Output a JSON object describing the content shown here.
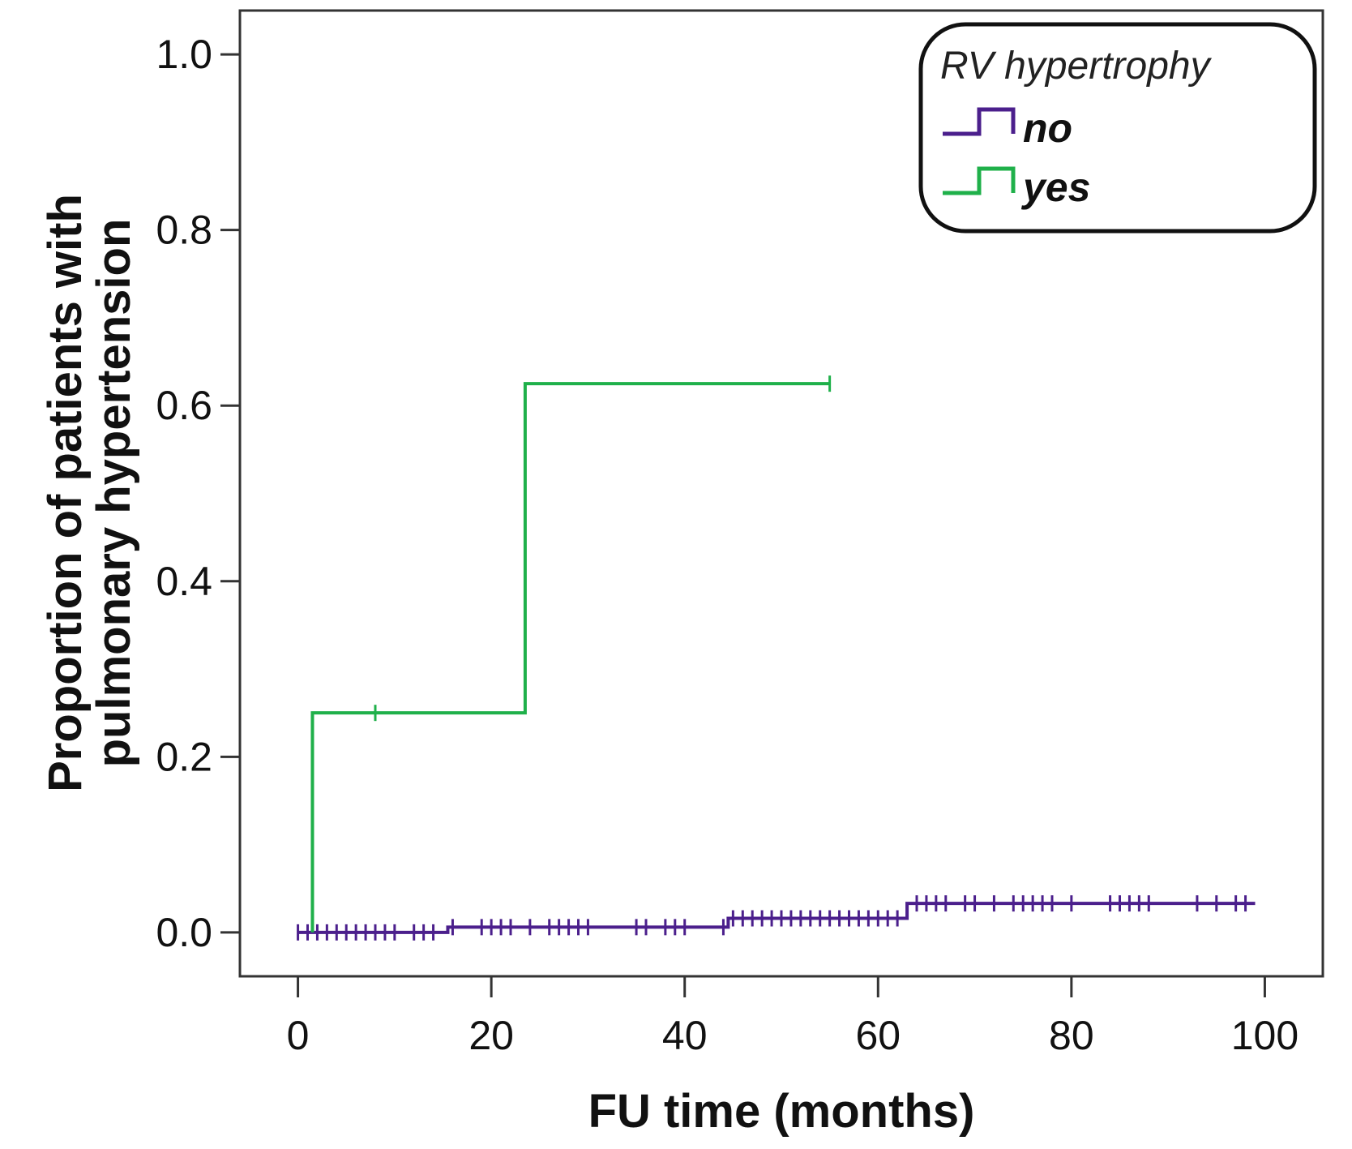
{
  "chart_data": {
    "type": "line",
    "subtype": "kaplan-meier-cumulative-incidence",
    "title": "",
    "xlabel": "FU time (months)",
    "ylabel_line1": "Proportion of patients with",
    "ylabel_line2": "pulmonary hypertension",
    "xlim": [
      -6,
      106
    ],
    "ylim": [
      -0.05,
      1.05
    ],
    "xticks": [
      0,
      20,
      40,
      60,
      80,
      100
    ],
    "xtick_labels": [
      "0",
      "20",
      "40",
      "60",
      "80",
      "100"
    ],
    "yticks": [
      0.0,
      0.2,
      0.4,
      0.6,
      0.8,
      1.0
    ],
    "ytick_labels": [
      "0.0",
      "0.2",
      "0.4",
      "0.6",
      "0.8",
      "1.0"
    ],
    "legend": {
      "title": "RV hypertrophy",
      "position": "top-right"
    },
    "series": [
      {
        "name": "no",
        "color": "#4b1f8c",
        "steps": [
          [
            0,
            0.0
          ],
          [
            15.5,
            0.006
          ],
          [
            44.5,
            0.016
          ],
          [
            63,
            0.033
          ],
          [
            99,
            0.033
          ]
        ],
        "censor_times": [
          0,
          1,
          2,
          3,
          4,
          5,
          6,
          7,
          8,
          9,
          10,
          12,
          13,
          14,
          16,
          19,
          20,
          21,
          22,
          24,
          26,
          27,
          28,
          29,
          30,
          35,
          36,
          38,
          39,
          40,
          44,
          45,
          46,
          47,
          48,
          49,
          50,
          51,
          52,
          53,
          54,
          55,
          56,
          57,
          58,
          59,
          60,
          61,
          62,
          64,
          65,
          66,
          67,
          69,
          70,
          72,
          74,
          75,
          76,
          77,
          78,
          80,
          84,
          85,
          86,
          87,
          88,
          93,
          95,
          97,
          98
        ]
      },
      {
        "name": "yes",
        "color": "#1fb04a",
        "steps": [
          [
            1.5,
            0.0
          ],
          [
            1.5,
            0.25
          ],
          [
            23.5,
            0.625
          ],
          [
            55,
            0.625
          ]
        ],
        "censor_times": [
          8,
          55
        ]
      }
    ]
  }
}
